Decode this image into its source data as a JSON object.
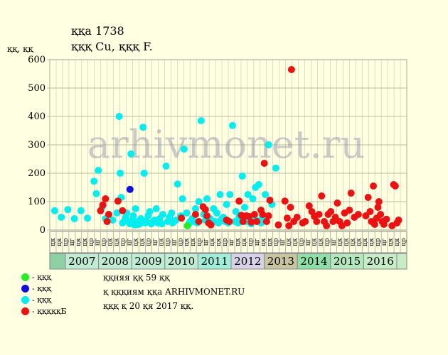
{
  "header": {
    "title": "ққа 1738",
    "subtitle": "қққ Cu, қққ F.",
    "ylabel": "ққ, ққ"
  },
  "watermark": "arhivmonet.ru",
  "legend": [
    {
      "label": "- қққ",
      "color": "#22ee22"
    },
    {
      "label": "- қққ",
      "color": "#1111dd"
    },
    {
      "label": "- қққ",
      "color": "#00eeee"
    },
    {
      "label": "- қққққБ",
      "color": "#ee1111"
    }
  ],
  "notes": [
    "ққняя ққ 59 ққ",
    "қ қққиям ққа ARHIVMONET.RU",
    "қққ қ 20 қя 2017 ққ."
  ],
  "chart_data": {
    "type": "scatter",
    "ylim": [
      0,
      600
    ],
    "yticks": [
      0,
      100,
      200,
      300,
      400,
      500,
      600
    ],
    "grid": true,
    "years": [
      {
        "label": "2007",
        "color": "#c0ecd4"
      },
      {
        "label": "2008",
        "color": "#c0ecd4"
      },
      {
        "label": "2009",
        "color": "#c0ecd4"
      },
      {
        "label": "2010",
        "color": "#c0ecd4"
      },
      {
        "label": "2011",
        "color": "#a0eed8"
      },
      {
        "label": "2012",
        "color": "#d8d2e8"
      },
      {
        "label": "2013",
        "color": "#c8c4a0"
      },
      {
        "label": "2014",
        "color": "#8ee0a8"
      },
      {
        "label": "2014b",
        "color": "#8ee0a8"
      },
      {
        "label": "2015",
        "color": "#b4e8bc"
      },
      {
        "label": "2016",
        "color": "#c8ecc8"
      }
    ],
    "year_labels": [
      "2007",
      "2008",
      "2009",
      "2010",
      "2011",
      "2012",
      "2013",
      "2014",
      "2015",
      "2016"
    ],
    "month_labels": [
      "цк",
      "цк",
      "цр",
      "цг",
      "цк",
      "цк",
      "цр",
      "цг",
      "цр",
      "цк",
      "цк",
      "цр",
      "цг",
      "цк",
      "цк",
      "цр",
      "цг",
      "цк",
      "цр",
      "цг",
      "цр",
      "цк",
      "цк",
      "цр",
      "цг",
      "цк",
      "цк",
      "цр",
      "цг",
      "цк",
      "цк",
      "цр",
      "цг",
      "цк",
      "цк",
      "цр",
      "цг",
      "цк",
      "цк",
      "цр",
      "цг",
      "цк",
      "цк",
      "цр",
      "цг",
      "цк",
      "цк",
      "цк",
      "цк",
      "цк",
      "цк",
      "цр",
      "цг",
      "цк",
      "цк",
      "цр"
    ],
    "series": [
      {
        "name": "қққ",
        "color": "#22ee22",
        "points": [
          [
            2010.2,
            15
          ]
        ]
      },
      {
        "name": "қққ",
        "color": "#1111dd",
        "points": [
          [
            2008.45,
            143
          ]
        ]
      },
      {
        "name": "қққ",
        "color": "#00eeee",
        "points": [
          [
            2006.15,
            68
          ],
          [
            2006.35,
            45
          ],
          [
            2006.55,
            72
          ],
          [
            2006.75,
            40
          ],
          [
            2006.95,
            68
          ],
          [
            2007.15,
            42
          ],
          [
            2007.35,
            172
          ],
          [
            2007.42,
            128
          ],
          [
            2007.48,
            210
          ],
          [
            2007.6,
            80
          ],
          [
            2007.7,
            40
          ],
          [
            2007.8,
            55
          ],
          [
            2007.92,
            35
          ],
          [
            2008.05,
            60
          ],
          [
            2008.12,
            400
          ],
          [
            2008.15,
            200
          ],
          [
            2008.18,
            115
          ],
          [
            2008.22,
            25
          ],
          [
            2008.3,
            40
          ],
          [
            2008.35,
            60
          ],
          [
            2008.42,
            30
          ],
          [
            2008.48,
            268
          ],
          [
            2008.55,
            50
          ],
          [
            2008.62,
            75
          ],
          [
            2008.7,
            20
          ],
          [
            2008.78,
            40
          ],
          [
            2008.85,
            362
          ],
          [
            2008.88,
            200
          ],
          [
            2008.95,
            30
          ],
          [
            2009.0,
            50
          ],
          [
            2009.05,
            65
          ],
          [
            2009.15,
            30
          ],
          [
            2009.25,
            75
          ],
          [
            2009.35,
            40
          ],
          [
            2009.45,
            55
          ],
          [
            2009.55,
            225
          ],
          [
            2009.65,
            45
          ],
          [
            2009.72,
            60
          ],
          [
            2009.8,
            30
          ],
          [
            2009.9,
            162
          ],
          [
            2010.0,
            50
          ],
          [
            2010.05,
            110
          ],
          [
            2010.1,
            285
          ],
          [
            2010.18,
            60
          ],
          [
            2010.28,
            30
          ],
          [
            2010.35,
            40
          ],
          [
            2010.45,
            75
          ],
          [
            2010.55,
            100
          ],
          [
            2010.62,
            385
          ],
          [
            2010.7,
            55
          ],
          [
            2010.8,
            110
          ],
          [
            2010.9,
            40
          ],
          [
            2011.0,
            75
          ],
          [
            2011.1,
            60
          ],
          [
            2011.2,
            125
          ],
          [
            2011.3,
            45
          ],
          [
            2011.4,
            90
          ],
          [
            2011.5,
            125
          ],
          [
            2011.58,
            368
          ],
          [
            2011.68,
            65
          ],
          [
            2011.78,
            45
          ],
          [
            2011.88,
            190
          ],
          [
            2011.95,
            80
          ],
          [
            2012.05,
            125
          ],
          [
            2012.12,
            30
          ],
          [
            2012.2,
            110
          ],
          [
            2012.28,
            150
          ],
          [
            2012.38,
            160
          ],
          [
            2012.48,
            40
          ],
          [
            2012.58,
            125
          ],
          [
            2012.68,
            300
          ],
          [
            2012.78,
            90
          ],
          [
            2012.9,
            218
          ],
          [
            2008.25,
            28
          ],
          [
            2008.32,
            45
          ],
          [
            2008.45,
            22
          ],
          [
            2008.52,
            35
          ],
          [
            2008.6,
            18
          ],
          [
            2008.68,
            30
          ],
          [
            2008.75,
            22
          ],
          [
            2008.82,
            35
          ],
          [
            2008.92,
            25
          ],
          [
            2009.1,
            22
          ],
          [
            2009.2,
            35
          ],
          [
            2009.3,
            25
          ],
          [
            2009.42,
            22
          ],
          [
            2009.6,
            30
          ],
          [
            2009.75,
            25
          ],
          [
            2009.85,
            35
          ],
          [
            2010.25,
            22
          ],
          [
            2010.4,
            30
          ],
          [
            2010.5,
            25
          ],
          [
            2010.75,
            35
          ],
          [
            2010.85,
            25
          ],
          [
            2011.05,
            30
          ],
          [
            2011.15,
            25
          ],
          [
            2011.25,
            40
          ],
          [
            2011.35,
            30
          ],
          [
            2011.45,
            25
          ],
          [
            2011.65,
            30
          ],
          [
            2011.75,
            25
          ],
          [
            2011.85,
            35
          ],
          [
            2012.0,
            30
          ],
          [
            2012.15,
            22
          ],
          [
            2012.25,
            45
          ],
          [
            2012.35,
            30
          ],
          [
            2012.45,
            25
          ],
          [
            2012.55,
            35
          ]
        ]
      },
      {
        "name": "қққққБ",
        "color": "#ee1111",
        "points": [
          [
            2007.55,
            68
          ],
          [
            2007.62,
            88
          ],
          [
            2007.7,
            110
          ],
          [
            2007.75,
            30
          ],
          [
            2007.8,
            55
          ],
          [
            2008.08,
            102
          ],
          [
            2008.22,
            68
          ],
          [
            2010.02,
            42
          ],
          [
            2010.45,
            55
          ],
          [
            2010.55,
            30
          ],
          [
            2010.68,
            82
          ],
          [
            2010.75,
            72
          ],
          [
            2010.8,
            50
          ],
          [
            2010.85,
            25
          ],
          [
            2010.92,
            18
          ],
          [
            2011.4,
            35
          ],
          [
            2011.48,
            30
          ],
          [
            2011.78,
            102
          ],
          [
            2011.85,
            52
          ],
          [
            2011.9,
            30
          ],
          [
            2012.0,
            50
          ],
          [
            2012.08,
            48
          ],
          [
            2012.15,
            28
          ],
          [
            2012.25,
            55
          ],
          [
            2012.32,
            30
          ],
          [
            2012.45,
            70
          ],
          [
            2012.5,
            55
          ],
          [
            2012.55,
            235
          ],
          [
            2012.62,
            30
          ],
          [
            2012.68,
            50
          ],
          [
            2012.72,
            105
          ],
          [
            2012.98,
            18
          ],
          [
            2013.18,
            102
          ],
          [
            2013.25,
            42
          ],
          [
            2013.3,
            15
          ],
          [
            2013.35,
            80
          ],
          [
            2013.38,
            565
          ],
          [
            2013.45,
            30
          ],
          [
            2013.55,
            45
          ],
          [
            2013.72,
            25
          ],
          [
            2013.8,
            30
          ],
          [
            2013.92,
            85
          ],
          [
            2014.0,
            65
          ],
          [
            2014.08,
            48
          ],
          [
            2014.15,
            30
          ],
          [
            2014.22,
            55
          ],
          [
            2014.3,
            120
          ],
          [
            2014.38,
            30
          ],
          [
            2014.45,
            15
          ],
          [
            2014.5,
            55
          ],
          [
            2014.58,
            65
          ],
          [
            2014.65,
            30
          ],
          [
            2014.72,
            45
          ],
          [
            2014.78,
            95
          ],
          [
            2014.85,
            30
          ],
          [
            2014.92,
            15
          ],
          [
            2015.0,
            60
          ],
          [
            2015.08,
            25
          ],
          [
            2015.15,
            70
          ],
          [
            2015.2,
            130
          ],
          [
            2015.3,
            45
          ],
          [
            2015.42,
            55
          ],
          [
            2015.65,
            50
          ],
          [
            2015.72,
            115
          ],
          [
            2015.78,
            65
          ],
          [
            2015.82,
            30
          ],
          [
            2015.88,
            155
          ],
          [
            2015.92,
            20
          ],
          [
            2015.98,
            42
          ],
          [
            2016.02,
            80
          ],
          [
            2016.05,
            100
          ],
          [
            2016.1,
            55
          ],
          [
            2016.15,
            30
          ],
          [
            2016.2,
            20
          ],
          [
            2016.28,
            38
          ],
          [
            2016.5,
            160
          ],
          [
            2016.55,
            155
          ],
          [
            2016.6,
            25
          ],
          [
            2016.65,
            35
          ],
          [
            2016.45,
            15
          ]
        ]
      }
    ]
  }
}
